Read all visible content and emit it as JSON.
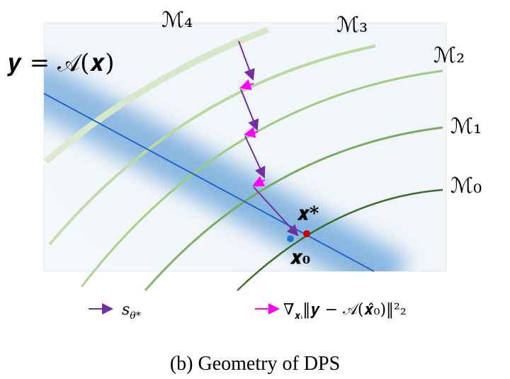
{
  "diagram": {
    "manifold_labels": [
      "ℳ₄",
      "ℳ₃",
      "ℳ₂",
      "ℳ₁",
      "ℳ₀"
    ],
    "measurement_label": "𝒚 = 𝒜(𝒙)",
    "x_star_label": "𝒙*",
    "x0_label": "𝒙₀",
    "legend": [
      "s",
      "θ*",
      "∇",
      "𝒙ᵢ",
      "‖𝒚 − 𝒜(𝒙̂₀)‖²₂"
    ],
    "caption": "(b) Geometry of DPS"
  }
}
